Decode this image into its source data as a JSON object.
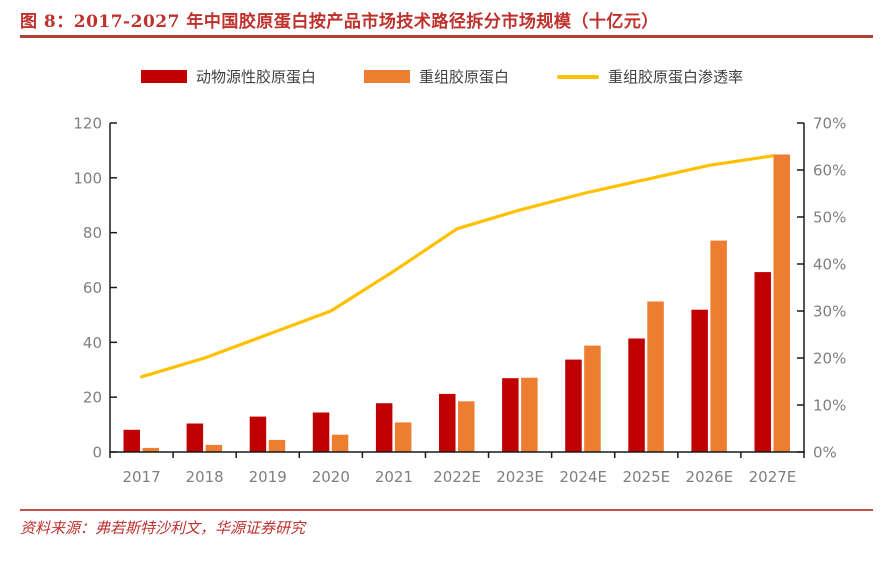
{
  "figure": {
    "title": "图 8：2017-2027 年中国胶原蛋白按产品市场技术路径拆分市场规模（十亿元）",
    "source": "资料来源：弗若斯特沙利文，华源证券研究"
  },
  "colors": {
    "animal_bar": "#c00000",
    "recombinant_bar": "#ed7d31",
    "penetration_line": "#ffc000",
    "title_red": "#be312d",
    "axis_ink": "#1a1a1a",
    "axis_label_gray": "#7f7f7f"
  },
  "chart_data": {
    "type": "bar+line combo",
    "categories": [
      "2017",
      "2018",
      "2019",
      "2020",
      "2021",
      "2022E",
      "2023E",
      "2024E",
      "2025E",
      "2026E",
      "2027E"
    ],
    "series": [
      {
        "name": "动物源性胶原蛋白",
        "type": "bar",
        "axis": "left",
        "color": "#c00000",
        "values": [
          8.1,
          10.4,
          12.9,
          14.4,
          17.8,
          21.2,
          26.9,
          33.7,
          41.4,
          51.9,
          65.6
        ]
      },
      {
        "name": "重组胶原蛋白",
        "type": "bar",
        "axis": "left",
        "color": "#ed7d31",
        "values": [
          1.5,
          2.6,
          4.4,
          6.3,
          10.8,
          18.5,
          27.1,
          38.8,
          54.9,
          77.1,
          108.5
        ]
      },
      {
        "name": "重组胶原蛋白渗透率",
        "type": "line",
        "axis": "right",
        "color": "#ffc000",
        "values": [
          16,
          20,
          25,
          30,
          38.5,
          47.5,
          51.5,
          55,
          58,
          61,
          63
        ]
      }
    ],
    "left_axis": {
      "min": 0,
      "max": 120,
      "step": 20,
      "tick_labels": [
        "0",
        "20",
        "40",
        "60",
        "80",
        "100",
        "120"
      ]
    },
    "right_axis": {
      "min": 0,
      "max": 70,
      "step": 10,
      "tick_labels": [
        "0%",
        "10%",
        "20%",
        "30%",
        "40%",
        "50%",
        "60%",
        "70%"
      ]
    },
    "grid": false,
    "legend_position": "top"
  }
}
